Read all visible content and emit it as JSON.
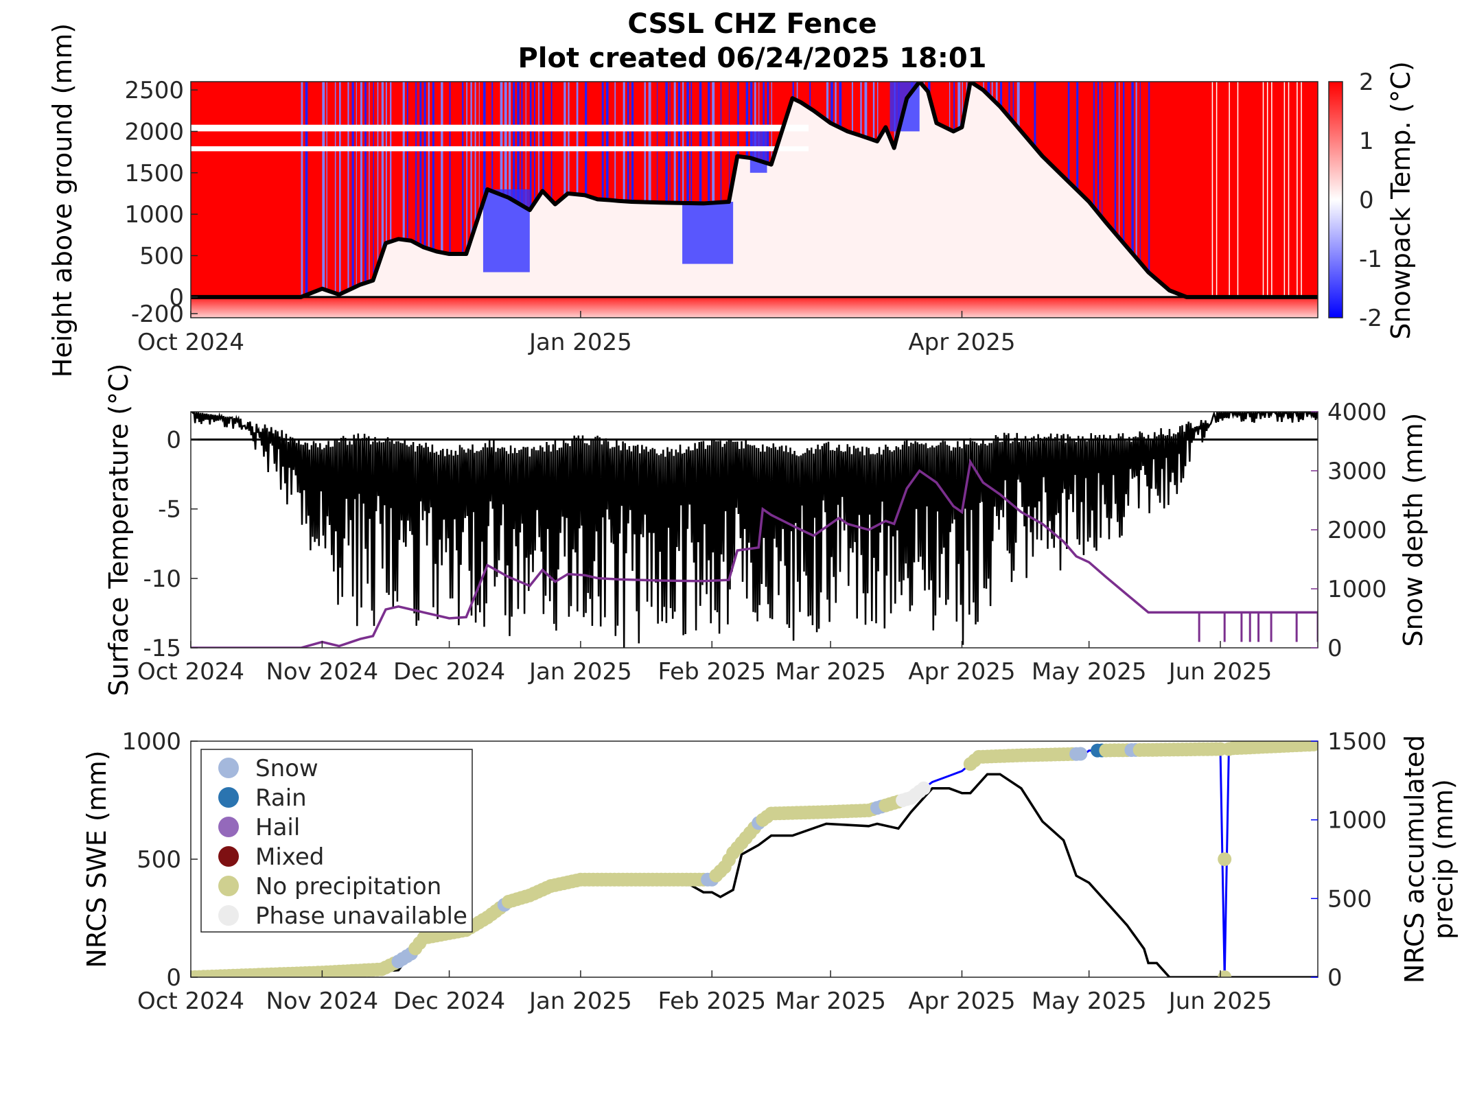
{
  "figure": {
    "title_line1": "CSSL CHZ Fence",
    "title_line2": "Plot created 06/24/2025 18:01"
  },
  "colors": {
    "warm": "#ff0000",
    "cold": "#0000ff",
    "depth_line": "#7b2f8e",
    "precip_line": "#0000ff",
    "snow": "#a4b8dc",
    "rain": "#2a74b0",
    "hail": "#9469bb",
    "mixed": "#7e1012",
    "none": "#cfd090",
    "unavailable": "#ececec"
  },
  "chart_data": [
    {
      "type": "heatmap",
      "ylabel": "Height above ground (mm)",
      "colorbar_label": "Snowpack Temp. (°C)",
      "colorbar_ticks": [
        "2",
        "1",
        "0",
        "-1",
        "-2"
      ],
      "clim": [
        -2,
        2
      ],
      "ylim": [
        -250,
        2600
      ],
      "yticks": [
        -200,
        0,
        500,
        1000,
        1500,
        2000,
        2500
      ],
      "ytick_labels": [
        "-200",
        "0",
        "500",
        "1000",
        "1500",
        "2000",
        "2500"
      ],
      "xlim": [
        "2024-10-01",
        "2025-06-24"
      ],
      "xticks": [
        {
          "date": "2024-10-01",
          "label": "Oct 2024"
        },
        {
          "date": "2025-01-01",
          "label": "Jan 2025"
        },
        {
          "date": "2025-04-01",
          "label": "Apr 2025"
        }
      ],
      "snow_height_line": {
        "x": [
          "2024-10-01",
          "2024-10-27",
          "2024-11-01",
          "2024-11-05",
          "2024-11-10",
          "2024-11-13",
          "2024-11-16",
          "2024-11-19",
          "2024-11-22",
          "2024-11-25",
          "2024-11-28",
          "2024-12-01",
          "2024-12-05",
          "2024-12-10",
          "2024-12-15",
          "2024-12-20",
          "2024-12-23",
          "2024-12-26",
          "2024-12-29",
          "2025-01-02",
          "2025-01-05",
          "2025-01-08",
          "2025-01-10",
          "2025-01-13",
          "2025-01-20",
          "2025-01-30",
          "2025-02-05",
          "2025-02-07",
          "2025-02-10",
          "2025-02-15",
          "2025-02-20",
          "2025-02-22",
          "2025-02-25",
          "2025-03-01",
          "2025-03-05",
          "2025-03-08",
          "2025-03-12",
          "2025-03-14",
          "2025-03-16",
          "2025-03-19",
          "2025-03-22",
          "2025-03-24",
          "2025-03-26",
          "2025-03-30",
          "2025-04-01",
          "2025-04-03",
          "2025-04-06",
          "2025-04-10",
          "2025-04-15",
          "2025-04-20",
          "2025-04-25",
          "2025-04-28",
          "2025-05-01",
          "2025-05-05",
          "2025-05-10",
          "2025-05-15",
          "2025-05-20",
          "2025-05-24",
          "2025-06-24"
        ],
        "y": [
          0,
          0,
          100,
          30,
          150,
          200,
          650,
          700,
          680,
          600,
          550,
          520,
          520,
          1300,
          1200,
          1050,
          1280,
          1120,
          1250,
          1230,
          1180,
          1170,
          1160,
          1150,
          1140,
          1130,
          1150,
          1700,
          1680,
          1600,
          2400,
          2350,
          2250,
          2100,
          2000,
          1950,
          1880,
          2050,
          1800,
          2400,
          2600,
          2480,
          2100,
          2000,
          2050,
          2600,
          2500,
          2300,
          2000,
          1700,
          1450,
          1300,
          1150,
          900,
          600,
          300,
          80,
          0,
          0
        ]
      }
    },
    {
      "type": "line",
      "ylabel": "Surface Temperature (°C)",
      "y2label": "Snow depth (mm)",
      "ylim": [
        -15,
        2
      ],
      "yticks": [
        0,
        -5,
        -10,
        -15
      ],
      "ytick_labels": [
        "0",
        "-5",
        "-10",
        "-15"
      ],
      "y2lim": [
        0,
        4000
      ],
      "y2ticks": [
        0,
        1000,
        2000,
        3000,
        4000
      ],
      "y2tick_labels": [
        "0",
        "1000",
        "2000",
        "3000",
        "4000"
      ],
      "xlim": [
        "2024-10-01",
        "2025-06-24"
      ],
      "xticks": [
        {
          "date": "2024-10-01",
          "label": "Oct 2024"
        },
        {
          "date": "2024-11-01",
          "label": "Nov 2024"
        },
        {
          "date": "2024-12-01",
          "label": "Dec 2024"
        },
        {
          "date": "2025-01-01",
          "label": "Jan 2025"
        },
        {
          "date": "2025-02-01",
          "label": "Feb 2025"
        },
        {
          "date": "2025-03-01",
          "label": "Mar 2025"
        },
        {
          "date": "2025-04-01",
          "label": "Apr 2025"
        },
        {
          "date": "2025-05-01",
          "label": "May 2025"
        },
        {
          "date": "2025-06-01",
          "label": "Jun 2025"
        }
      ],
      "reference_line_y": 0,
      "snow_depth": {
        "x": [
          "2024-10-01",
          "2024-10-27",
          "2024-11-01",
          "2024-11-05",
          "2024-11-10",
          "2024-11-13",
          "2024-11-16",
          "2024-11-19",
          "2024-11-25",
          "2024-12-01",
          "2024-12-05",
          "2024-12-10",
          "2024-12-15",
          "2024-12-20",
          "2024-12-23",
          "2024-12-26",
          "2024-12-29",
          "2025-01-02",
          "2025-01-05",
          "2025-01-10",
          "2025-01-20",
          "2025-01-30",
          "2025-02-05",
          "2025-02-07",
          "2025-02-12",
          "2025-02-13",
          "2025-02-15",
          "2025-02-22",
          "2025-02-25",
          "2025-03-03",
          "2025-03-05",
          "2025-03-10",
          "2025-03-14",
          "2025-03-16",
          "2025-03-19",
          "2025-03-22",
          "2025-03-26",
          "2025-03-30",
          "2025-04-01",
          "2025-04-03",
          "2025-04-06",
          "2025-04-10",
          "2025-04-15",
          "2025-04-20",
          "2025-04-25",
          "2025-04-28",
          "2025-05-01",
          "2025-05-05",
          "2025-05-10",
          "2025-05-15",
          "2025-05-20",
          "2025-05-24",
          "2025-06-24"
        ],
        "y": [
          0,
          0,
          100,
          30,
          150,
          200,
          650,
          700,
          600,
          500,
          520,
          1400,
          1200,
          1050,
          1320,
          1120,
          1250,
          1230,
          1180,
          1160,
          1140,
          1130,
          1150,
          1650,
          1700,
          2350,
          2250,
          2000,
          1900,
          2200,
          2100,
          2000,
          2150,
          2100,
          2700,
          3000,
          2800,
          2400,
          2300,
          3150,
          2800,
          2600,
          2300,
          2100,
          1800,
          1550,
          1450,
          1200,
          900,
          600,
          600,
          600,
          600
        ]
      },
      "surface_temperature": {
        "x": [
          "2024-10-01",
          "2024-10-12",
          "2024-10-20",
          "2024-10-27",
          "2024-11-01",
          "2024-11-10",
          "2024-11-20",
          "2024-12-01",
          "2024-12-10",
          "2024-12-20",
          "2025-01-01",
          "2025-01-10",
          "2025-01-20",
          "2025-02-01",
          "2025-02-10",
          "2025-02-20",
          "2025-03-01",
          "2025-03-10",
          "2025-03-20",
          "2025-04-01",
          "2025-04-10",
          "2025-04-20",
          "2025-05-01",
          "2025-05-10",
          "2025-05-20",
          "2025-05-31",
          "2025-06-23"
        ],
        "upper": [
          2,
          1.5,
          1,
          0,
          0,
          0.5,
          0,
          -0.5,
          0,
          -0.5,
          0.5,
          0,
          -0.5,
          0,
          0,
          -0.5,
          0,
          -0.5,
          0,
          0,
          0.5,
          0.5,
          0.5,
          0.5,
          1,
          2,
          2
        ],
        "lower": [
          2,
          1.5,
          -3,
          -7,
          -11,
          -14,
          -13,
          -15,
          -14,
          -15,
          -14,
          -15,
          -15,
          -15,
          -14,
          -15,
          -13,
          -14,
          -13,
          -15,
          -11,
          -10,
          -9,
          -7,
          -5,
          2,
          2
        ]
      }
    },
    {
      "type": "scatter",
      "ylabel": "NRCS SWE (mm)",
      "y2label_line1": "NRCS accumulated",
      "y2label_line2": "precip (mm)",
      "ylim": [
        0,
        1000
      ],
      "yticks": [
        0,
        500,
        1000
      ],
      "ytick_labels": [
        "0",
        "500",
        "1000"
      ],
      "y2lim": [
        0,
        1500
      ],
      "y2ticks": [
        0,
        500,
        1000,
        1500
      ],
      "y2tick_labels": [
        "0",
        "500",
        "1000",
        "1500"
      ],
      "xlim": [
        "2024-10-01",
        "2025-06-24"
      ],
      "xticks": [
        {
          "date": "2024-10-01",
          "label": "Oct 2024"
        },
        {
          "date": "2024-11-01",
          "label": "Nov 2024"
        },
        {
          "date": "2024-12-01",
          "label": "Dec 2024"
        },
        {
          "date": "2025-01-01",
          "label": "Jan 2025"
        },
        {
          "date": "2025-02-01",
          "label": "Feb 2025"
        },
        {
          "date": "2025-03-01",
          "label": "Mar 2025"
        },
        {
          "date": "2025-04-01",
          "label": "Apr 2025"
        },
        {
          "date": "2025-05-01",
          "label": "May 2025"
        },
        {
          "date": "2025-06-01",
          "label": "Jun 2025"
        }
      ],
      "legend": [
        {
          "label": "Snow",
          "key": "snow"
        },
        {
          "label": "Rain",
          "key": "rain"
        },
        {
          "label": "Hail",
          "key": "hail"
        },
        {
          "label": "Mixed",
          "key": "mixed"
        },
        {
          "label": "No precipitation",
          "key": "none"
        },
        {
          "label": "Phase unavailable",
          "key": "unavailable"
        }
      ],
      "legend_position": "top-left",
      "swe": {
        "x": [
          "2024-10-01",
          "2024-10-25",
          "2024-11-06",
          "2024-11-10",
          "2024-11-15",
          "2024-11-19",
          "2024-11-22",
          "2024-11-25",
          "2024-12-05",
          "2024-12-10",
          "2024-12-15",
          "2024-12-20",
          "2024-12-25",
          "2025-01-01",
          "2025-01-05",
          "2025-01-20",
          "2025-01-27",
          "2025-01-30",
          "2025-02-01",
          "2025-02-03",
          "2025-02-06",
          "2025-02-08",
          "2025-02-12",
          "2025-02-15",
          "2025-02-20",
          "2025-02-28",
          "2025-03-10",
          "2025-03-12",
          "2025-03-17",
          "2025-03-20",
          "2025-03-25",
          "2025-03-29",
          "2025-04-01",
          "2025-04-03",
          "2025-04-07",
          "2025-04-10",
          "2025-04-15",
          "2025-04-20",
          "2025-04-25",
          "2025-04-28",
          "2025-05-01",
          "2025-05-05",
          "2025-05-10",
          "2025-05-14",
          "2025-05-15",
          "2025-05-17",
          "2025-05-20",
          "2025-06-24"
        ],
        "y": [
          0,
          0,
          0,
          20,
          25,
          30,
          100,
          150,
          200,
          260,
          300,
          340,
          380,
          405,
          405,
          395,
          390,
          360,
          360,
          340,
          370,
          520,
          560,
          600,
          600,
          650,
          640,
          650,
          630,
          700,
          800,
          800,
          780,
          780,
          860,
          860,
          800,
          660,
          580,
          430,
          400,
          320,
          220,
          120,
          60,
          60,
          0,
          0
        ]
      },
      "accumulated_precip": {
        "x": [
          "2024-10-01",
          "2024-11-01",
          "2024-11-15",
          "2024-11-19",
          "2024-11-22",
          "2024-11-25",
          "2024-12-05",
          "2024-12-10",
          "2024-12-15",
          "2024-12-20",
          "2024-12-25",
          "2025-01-01",
          "2025-02-01",
          "2025-02-04",
          "2025-02-06",
          "2025-02-12",
          "2025-02-15",
          "2025-02-28",
          "2025-03-10",
          "2025-03-15",
          "2025-03-20",
          "2025-03-25",
          "2025-03-29",
          "2025-04-01",
          "2025-04-05",
          "2025-04-15",
          "2025-04-30",
          "2025-05-01",
          "2025-06-01",
          "2025-06-02",
          "2025-06-03",
          "2025-06-04",
          "2025-06-24"
        ],
        "y": [
          0,
          30,
          50,
          100,
          150,
          250,
          300,
          380,
          480,
          520,
          580,
          620,
          620,
          700,
          790,
          980,
          1040,
          1050,
          1060,
          1100,
          1140,
          1240,
          1280,
          1310,
          1400,
          1410,
          1420,
          1440,
          1450,
          0,
          1450,
          1455,
          1480
        ]
      },
      "phase_points": [
        {
          "start": "2024-10-01",
          "end": "2024-11-18",
          "phase": "none"
        },
        {
          "start": "2024-11-19",
          "end": "2024-11-22",
          "phase": "snow"
        },
        {
          "start": "2024-11-23",
          "end": "2024-12-13",
          "phase": "none"
        },
        {
          "start": "2024-12-14",
          "end": "2024-12-14",
          "phase": "snow"
        },
        {
          "start": "2024-12-15",
          "end": "2025-01-30",
          "phase": "none"
        },
        {
          "start": "2025-01-31",
          "end": "2025-02-01",
          "phase": "snow"
        },
        {
          "start": "2025-02-02",
          "end": "2025-02-11",
          "phase": "none"
        },
        {
          "start": "2025-02-12",
          "end": "2025-02-12",
          "phase": "snow"
        },
        {
          "start": "2025-02-13",
          "end": "2025-03-11",
          "phase": "none"
        },
        {
          "start": "2025-03-12",
          "end": "2025-03-13",
          "phase": "snow"
        },
        {
          "start": "2025-03-14",
          "end": "2025-03-17",
          "phase": "none"
        },
        {
          "start": "2025-03-18",
          "end": "2025-03-23",
          "phase": "unavailable"
        },
        {
          "start": "2025-04-03",
          "end": "2025-04-27",
          "phase": "none"
        },
        {
          "start": "2025-04-28",
          "end": "2025-04-29",
          "phase": "snow"
        },
        {
          "start": "2025-05-03",
          "end": "2025-05-04",
          "phase": "rain"
        },
        {
          "start": "2025-05-05",
          "end": "2025-05-10",
          "phase": "none"
        },
        {
          "start": "2025-05-11",
          "end": "2025-05-12",
          "phase": "snow"
        },
        {
          "start": "2025-05-13",
          "end": "2025-06-23",
          "phase": "none"
        }
      ],
      "outlier_point": {
        "x": "2025-06-02",
        "y": 500,
        "phase": "none"
      }
    }
  ]
}
